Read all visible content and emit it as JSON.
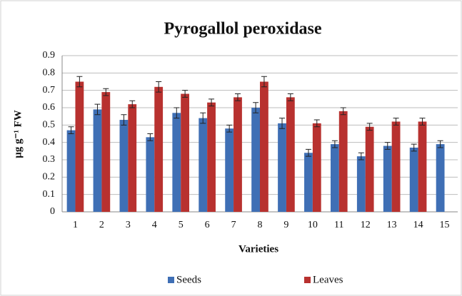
{
  "chart_data": {
    "type": "bar",
    "title": "Pyrogallol peroxidase",
    "x_label": "Varieties",
    "y_label": "μg g⁻¹ FW",
    "categories": [
      "1",
      "2",
      "3",
      "4",
      "5",
      "6",
      "7",
      "8",
      "9",
      "10",
      "11",
      "12",
      "13",
      "14",
      "15"
    ],
    "series": [
      {
        "name": "Seeds",
        "color": "#3f6fb5",
        "values": [
          0.47,
          0.59,
          0.53,
          0.43,
          0.57,
          0.54,
          0.48,
          0.6,
          0.51,
          0.34,
          0.39,
          0.32,
          0.38,
          0.37,
          0.39
        ],
        "errors": [
          0.02,
          0.03,
          0.03,
          0.02,
          0.03,
          0.03,
          0.02,
          0.03,
          0.03,
          0.02,
          0.02,
          0.02,
          0.02,
          0.02,
          0.02
        ]
      },
      {
        "name": "Leaves",
        "color": "#b8312f",
        "values": [
          0.75,
          0.69,
          0.62,
          0.72,
          0.68,
          0.63,
          0.66,
          0.75,
          0.66,
          0.51,
          0.58,
          0.49,
          0.52,
          0.52,
          null
        ],
        "errors": [
          0.03,
          0.02,
          0.02,
          0.03,
          0.02,
          0.02,
          0.02,
          0.03,
          0.02,
          0.02,
          0.02,
          0.02,
          0.02,
          0.02,
          null
        ]
      }
    ],
    "ylim": [
      0,
      0.9
    ],
    "yticks": [
      0,
      0.1,
      0.2,
      0.3,
      0.4,
      0.5,
      0.6,
      0.7,
      0.8,
      0.9
    ],
    "grid": true,
    "legend": "bottom"
  }
}
